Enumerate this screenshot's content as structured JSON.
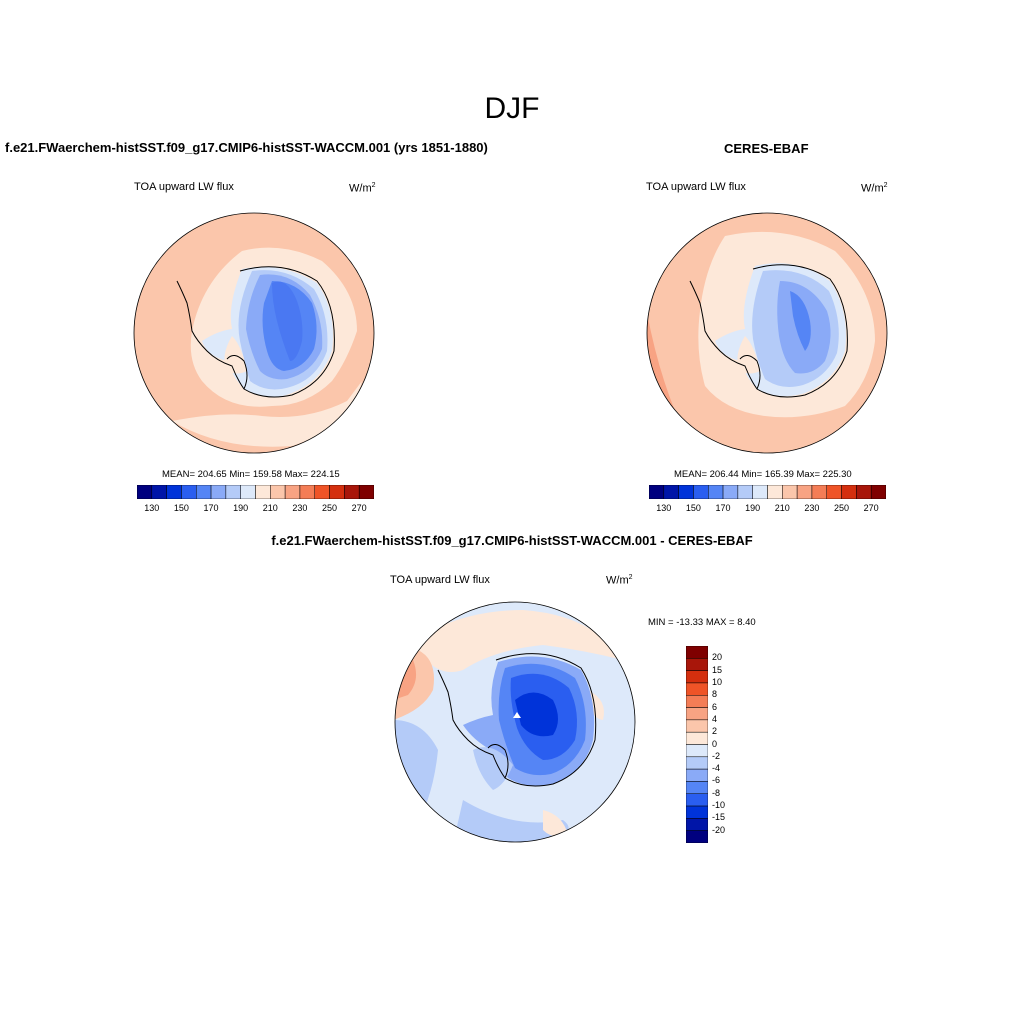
{
  "season_title": "DJF",
  "panels": {
    "model": {
      "title": "f.e21.FWaerchem-histSST.f09_g17.CMIP6-histSST-WACCM.001 (yrs 1851-1880)",
      "variable": "TOA upward LW flux",
      "units_base": "W/m",
      "units_exp": "2",
      "stats": "MEAN= 204.65  Min= 159.58  Max= 224.15"
    },
    "obs": {
      "title": "CERES-EBAF",
      "variable": "TOA upward LW flux",
      "units_base": "W/m",
      "units_exp": "2",
      "stats": "MEAN= 206.44  Min= 165.39  Max= 225.30"
    },
    "diff": {
      "title": "f.e21.FWaerchem-histSST.f09_g17.CMIP6-histSST-WACCM.001 - CERES-EBAF",
      "variable": "TOA upward LW flux",
      "units_base": "W/m",
      "units_exp": "2",
      "minmax": "MIN = -13.33 MAX =   8.40"
    }
  },
  "abs_colorbar": {
    "colors": [
      "#00007f",
      "#0015a8",
      "#0033d9",
      "#2a5ef0",
      "#5585f5",
      "#8aaaf7",
      "#b4cbf8",
      "#dde9fa",
      "#fde8d9",
      "#fbc6ab",
      "#f8a383",
      "#f47d56",
      "#ef5427",
      "#d42f0e",
      "#a8160a",
      "#7f0000"
    ],
    "labels": [
      "130",
      "150",
      "170",
      "190",
      "210",
      "230",
      "250",
      "270"
    ]
  },
  "diff_colorbar": {
    "colors": [
      "#7f0000",
      "#a8160a",
      "#d42f0e",
      "#ef5427",
      "#f47d56",
      "#f8a383",
      "#fbc6ab",
      "#fde8d9",
      "#dde9fa",
      "#b4cbf8",
      "#8aaaf7",
      "#5585f5",
      "#2a5ef0",
      "#0033d9",
      "#0015a8",
      "#00007f"
    ],
    "labels": [
      "20",
      "15",
      "10",
      "8",
      "6",
      "4",
      "2",
      "0",
      "-2",
      "-4",
      "-6",
      "-8",
      "-10",
      "-15",
      "-20"
    ]
  }
}
